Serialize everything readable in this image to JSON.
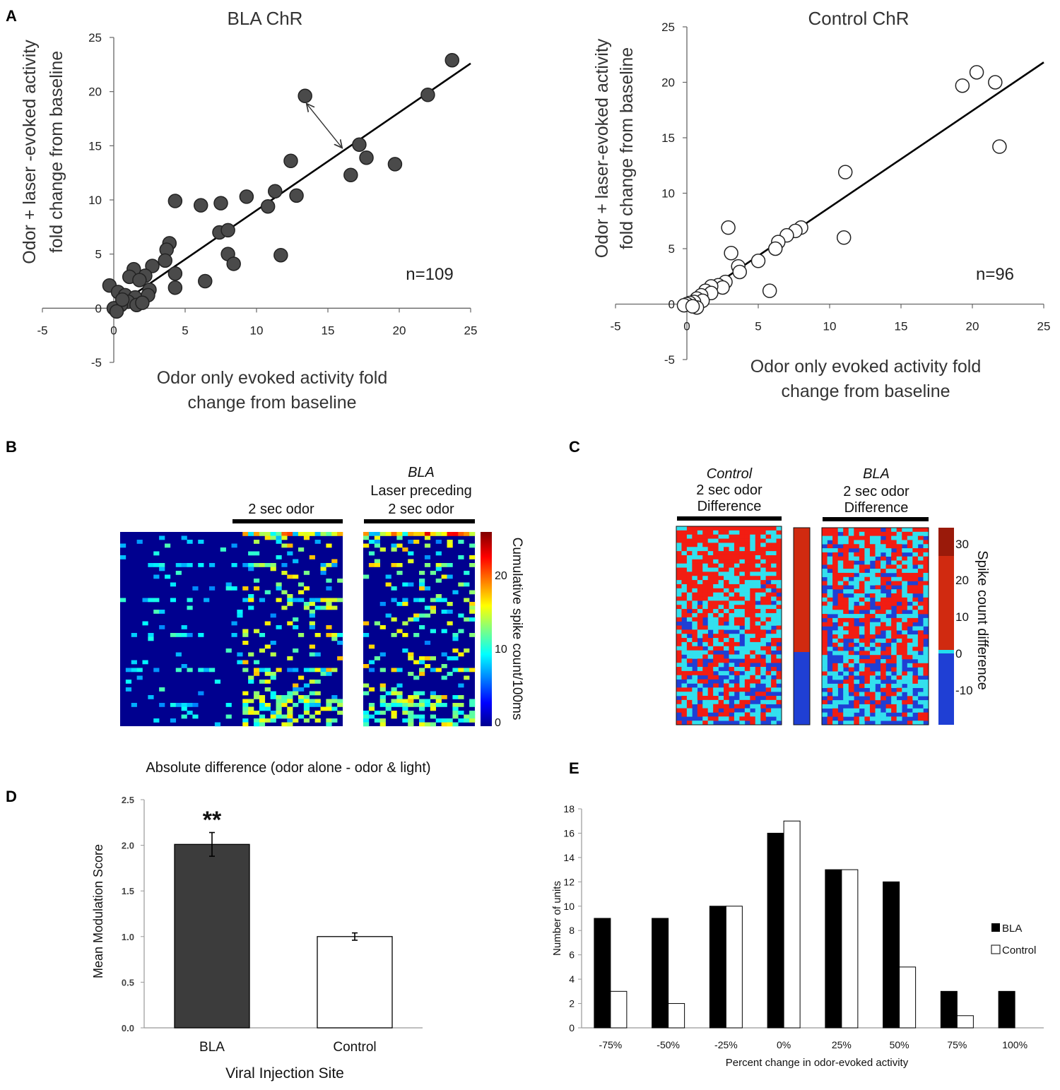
{
  "panel_labels": {
    "a": "A",
    "b": "B",
    "c": "C",
    "d": "D",
    "e": "E"
  },
  "colors": {
    "bla_fill": "#4a4a4a",
    "control_fill": "#ffffff",
    "axis": "#666666",
    "bar_dark": "#3c3c3c",
    "hist_bla": "#000000"
  },
  "chart_data": [
    {
      "id": "A1",
      "type": "scatter",
      "title": "BLA ChR",
      "xlabel": [
        "Odor only evoked activity fold",
        "change from baseline"
      ],
      "ylabel": [
        "Odor + laser -evoked activity",
        "fold change from baseline"
      ],
      "xlim": [
        -5,
        25
      ],
      "ylim": [
        -5,
        25
      ],
      "xticks": [
        "-5",
        "0",
        "5",
        "10",
        "15",
        "20",
        "25"
      ],
      "yticks": [
        "-5",
        "0",
        "5",
        "10",
        "15",
        "20",
        "25"
      ],
      "annotation": "n=109",
      "fit_line": {
        "x": [
          0,
          25
        ],
        "y": [
          0,
          22.6
        ]
      },
      "arrow": {
        "from": [
          13.5,
          18.9
        ],
        "to": [
          16.0,
          14.8
        ]
      },
      "points": [
        [
          23.7,
          22.9
        ],
        [
          22.0,
          19.7
        ],
        [
          13.4,
          19.6
        ],
        [
          12.4,
          13.6
        ],
        [
          17.2,
          15.1
        ],
        [
          17.7,
          13.9
        ],
        [
          16.6,
          12.3
        ],
        [
          19.7,
          13.3
        ],
        [
          11.3,
          10.8
        ],
        [
          12.8,
          10.4
        ],
        [
          10.8,
          9.4
        ],
        [
          9.3,
          10.3
        ],
        [
          7.5,
          9.7
        ],
        [
          6.1,
          9.5
        ],
        [
          4.3,
          9.9
        ],
        [
          7.4,
          7.0
        ],
        [
          8.0,
          7.2
        ],
        [
          8.0,
          5.0
        ],
        [
          8.4,
          4.1
        ],
        [
          11.7,
          4.9
        ],
        [
          6.4,
          2.5
        ],
        [
          4.3,
          3.2
        ],
        [
          4.3,
          1.9
        ],
        [
          3.9,
          6.0
        ],
        [
          3.7,
          5.4
        ],
        [
          3.6,
          4.4
        ],
        [
          2.7,
          3.9
        ],
        [
          2.2,
          3.0
        ],
        [
          1.4,
          3.6
        ],
        [
          1.1,
          2.9
        ],
        [
          1.8,
          2.6
        ],
        [
          -0.3,
          2.1
        ],
        [
          0.3,
          1.5
        ],
        [
          0.8,
          1.2
        ],
        [
          1.5,
          1.0
        ],
        [
          2.5,
          1.7
        ],
        [
          2.4,
          1.2
        ],
        [
          1.0,
          0.6
        ],
        [
          1.6,
          0.3
        ],
        [
          0.5,
          0.3
        ],
        [
          0.0,
          0.0
        ],
        [
          0.2,
          -0.3
        ],
        [
          2.0,
          0.5
        ],
        [
          0.6,
          0.8
        ]
      ]
    },
    {
      "id": "A2",
      "type": "scatter",
      "title": "Control ChR",
      "xlabel": [
        "Odor only evoked activity fold",
        "change from baseline"
      ],
      "ylabel": [
        "Odor + laser-evoked activity",
        "fold change from baseline"
      ],
      "xlim": [
        -5,
        25
      ],
      "ylim": [
        -5,
        25
      ],
      "xticks": [
        "-5",
        "0",
        "5",
        "10",
        "15",
        "20",
        "25"
      ],
      "yticks": [
        "-5",
        "0",
        "5",
        "10",
        "15",
        "20",
        "25"
      ],
      "annotation": "n=96",
      "fit_line": {
        "x": [
          0,
          25
        ],
        "y": [
          0,
          21.8
        ]
      },
      "points": [
        [
          20.3,
          20.9
        ],
        [
          19.3,
          19.7
        ],
        [
          21.6,
          20.0
        ],
        [
          21.9,
          14.2
        ],
        [
          11.1,
          11.9
        ],
        [
          11.0,
          6.0
        ],
        [
          2.9,
          6.9
        ],
        [
          3.1,
          4.6
        ],
        [
          8.0,
          6.9
        ],
        [
          7.6,
          6.6
        ],
        [
          7.0,
          6.2
        ],
        [
          6.4,
          5.6
        ],
        [
          6.2,
          5.0
        ],
        [
          5.0,
          3.9
        ],
        [
          3.6,
          3.4
        ],
        [
          3.7,
          2.9
        ],
        [
          5.8,
          1.2
        ],
        [
          2.7,
          2.0
        ],
        [
          2.2,
          1.7
        ],
        [
          2.5,
          1.5
        ],
        [
          1.7,
          1.6
        ],
        [
          1.3,
          1.2
        ],
        [
          1.7,
          1.0
        ],
        [
          1.0,
          0.8
        ],
        [
          0.7,
          0.5
        ],
        [
          1.1,
          0.3
        ],
        [
          0.5,
          0.2
        ],
        [
          0.2,
          0.1
        ],
        [
          0.0,
          0.0
        ],
        [
          -0.2,
          -0.1
        ],
        [
          0.7,
          -0.3
        ],
        [
          0.4,
          -0.2
        ]
      ]
    },
    {
      "id": "B",
      "type": "heatmap",
      "left_header": "2 sec odor",
      "right_header": [
        "BLA",
        "Laser preceding",
        "2 sec odor"
      ],
      "colorbar_label": "Cumulative spike count/100ms",
      "colorbar_ticks": [
        "0",
        "10",
        "20"
      ],
      "caption": "Absolute difference (odor alone - odor & light)"
    },
    {
      "id": "C",
      "type": "heatmap",
      "left_header": [
        "Control",
        "2 sec odor",
        "Difference"
      ],
      "right_header": [
        "BLA",
        "2 sec odor",
        "Difference"
      ],
      "colorbar_label": "Spike count difference",
      "colorbar_ticks": [
        "30",
        "20",
        "10",
        "0",
        "-10"
      ]
    },
    {
      "id": "D",
      "type": "bar",
      "categories": [
        "BLA",
        "Control"
      ],
      "values": [
        2.01,
        1.0
      ],
      "errors": [
        0.13,
        0.04
      ],
      "ylim": [
        0,
        2.5
      ],
      "yticks": [
        "0.0",
        "0.5",
        "1.0",
        "1.5",
        "2.0",
        "2.5"
      ],
      "ylabel": "Mean Modulation Score",
      "xlabel": "Viral Injection Site",
      "significance": "**"
    },
    {
      "id": "E",
      "type": "bar",
      "categories": [
        "-75%",
        "-50%",
        "-25%",
        "0%",
        "25%",
        "50%",
        "75%",
        "100%"
      ],
      "series": [
        {
          "name": "BLA",
          "values": [
            9,
            9,
            10,
            16,
            13,
            12,
            3,
            3
          ]
        },
        {
          "name": "Control",
          "values": [
            3,
            2,
            10,
            17,
            13,
            5,
            1,
            0
          ]
        }
      ],
      "ylim": [
        0,
        18
      ],
      "yticks": [
        "0",
        "2",
        "4",
        "6",
        "8",
        "10",
        "12",
        "14",
        "16",
        "18"
      ],
      "ylabel": "Number of units",
      "xlabel": "Percent change in odor-evoked activity"
    }
  ]
}
